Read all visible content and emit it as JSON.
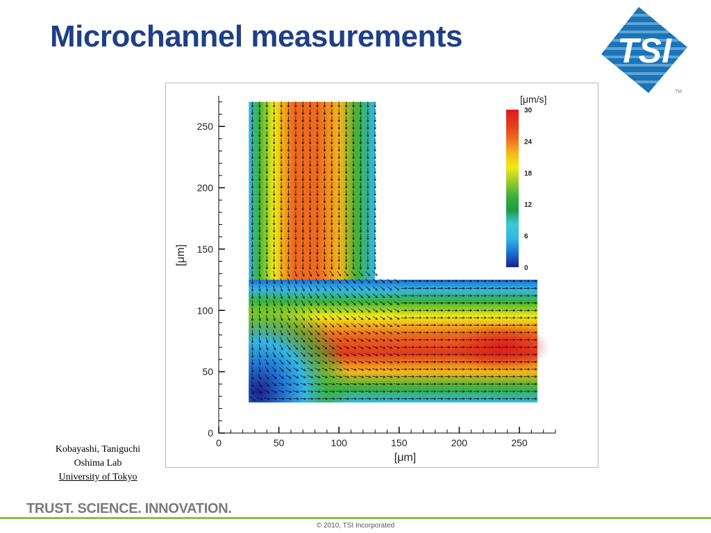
{
  "slide": {
    "title": "Microchannel measurements",
    "logo_text": "TSI",
    "logo_tm": "TM",
    "credits": [
      "Kobayashi, Taniguchi",
      "Oshima Lab"
    ],
    "affiliation": "University of Tokyo",
    "tagline": "TRUST. SCIENCE. INNOVATION.",
    "copyright": "© 2010, TSI Incorporated"
  },
  "colors": {
    "title": "#1f3f86",
    "logo_blue": "#1a74b8",
    "logo_light": "#9fcbea",
    "footer_green": "#8cbf3f",
    "tagline": "#7a7a7a",
    "arrow": "#111111"
  },
  "chart_data": {
    "type": "heatmap",
    "title": "",
    "xlabel": "[μm]",
    "ylabel": "[μm]",
    "xlim": [
      0,
      280
    ],
    "ylim": [
      0,
      275
    ],
    "xticks": [
      0,
      50,
      100,
      150,
      200,
      250
    ],
    "yticks": [
      0,
      50,
      100,
      150,
      200,
      250
    ],
    "grid": false,
    "colorbar": {
      "label": "[μm/s]",
      "min": 0,
      "max": 30,
      "ticks": [
        0,
        6,
        12,
        18,
        24,
        30
      ],
      "colormap": [
        "#1a1f8c",
        "#1e6fd2",
        "#33b6e6",
        "#3cc8d8",
        "#1f9a45",
        "#3cb33a",
        "#9ccd2d",
        "#f2ea17",
        "#f5b51c",
        "#ee6a1f",
        "#e23a1c",
        "#e01a1a"
      ]
    },
    "vector_field": {
      "quantity": "velocity",
      "inlet": "top",
      "outlet": "right",
      "max_speed_location": [
        235,
        70
      ]
    },
    "regions": [
      {
        "name": "vertical-channel",
        "x": [
          25,
          130
        ],
        "y": [
          25,
          270
        ]
      },
      {
        "name": "horizontal-channel",
        "x": [
          25,
          265
        ],
        "y": [
          25,
          125
        ]
      }
    ]
  }
}
